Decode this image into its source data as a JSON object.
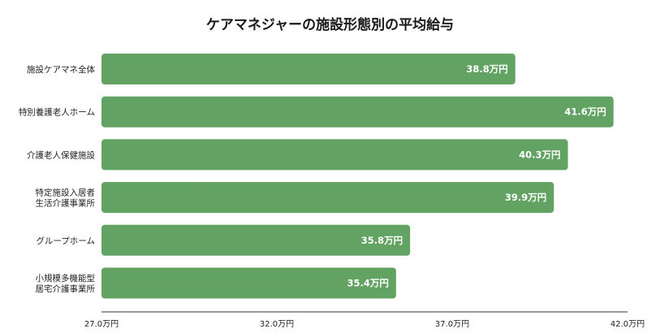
{
  "chart_data": {
    "type": "bar",
    "orientation": "horizontal",
    "title": "ケアマネジャーの施設形態別の平均給与",
    "xlabel": "",
    "ylabel": "",
    "unit": "万円",
    "categories": [
      [
        "施設ケアマネ全体"
      ],
      [
        "特別養護老人ホーム"
      ],
      [
        "介護老人保健施設"
      ],
      [
        "特定施設入居者",
        "生活介護事業所"
      ],
      [
        "グループホーム"
      ],
      [
        "小規模多機能型",
        "居宅介護事業所"
      ]
    ],
    "values": [
      38.8,
      41.6,
      40.3,
      39.9,
      35.8,
      35.4
    ],
    "data_labels": [
      "38.8万円",
      "41.6万円",
      "40.3万円",
      "39.9万円",
      "35.8万円",
      "35.4万円"
    ],
    "xlim": [
      27.0,
      42.0
    ],
    "xticks": [
      27.0,
      32.0,
      37.0,
      42.0
    ],
    "xtick_labels": [
      "27.0万円",
      "32.0万円",
      "37.0万円",
      "42.0万円"
    ],
    "bar_color": "#62a262",
    "grid": false,
    "legend": "none"
  }
}
